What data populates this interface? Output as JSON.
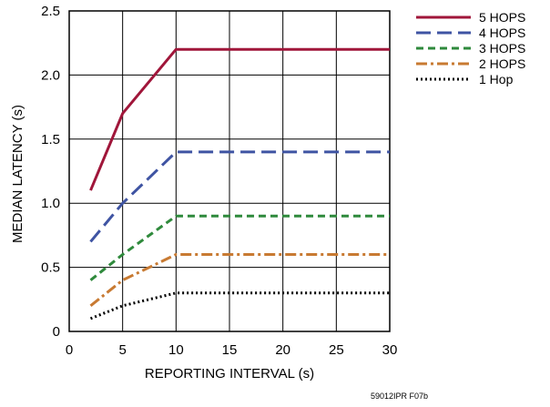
{
  "chart_data": {
    "type": "line",
    "xlabel": "REPORTING INTERVAL (s)",
    "ylabel": "MEDIAN LATENCY (s)",
    "xlim": [
      0,
      30
    ],
    "ylim": [
      0,
      2.5
    ],
    "x_ticks": [
      0,
      5,
      10,
      15,
      20,
      25,
      30
    ],
    "y_ticks": [
      0,
      0.5,
      1.0,
      1.5,
      2.0,
      2.5
    ],
    "x_tick_labels": [
      "0",
      "5",
      "10",
      "15",
      "20",
      "25",
      "30"
    ],
    "y_tick_labels": [
      "0",
      "0.5",
      "1.0",
      "1.5",
      "2.0",
      "2.5"
    ],
    "grid": true,
    "legend_position": "outside-top-right",
    "footnote": "59012IPR F07b",
    "series": [
      {
        "name": "5 HOPS",
        "color": "#a0163a",
        "dash": "solid",
        "x": [
          2,
          5,
          10,
          30
        ],
        "y": [
          1.1,
          1.7,
          2.2,
          2.2
        ]
      },
      {
        "name": "4 HOPS",
        "color": "#3f54a3",
        "dash": "longdash",
        "x": [
          2,
          5,
          10,
          30
        ],
        "y": [
          0.7,
          1.0,
          1.4,
          1.4
        ]
      },
      {
        "name": "3 HOPS",
        "color": "#2f8a3c",
        "dash": "dash",
        "x": [
          2,
          5,
          10,
          30
        ],
        "y": [
          0.4,
          0.6,
          0.9,
          0.9
        ]
      },
      {
        "name": "2 HOPS",
        "color": "#c87a32",
        "dash": "dashdot",
        "x": [
          2,
          5,
          10,
          30
        ],
        "y": [
          0.2,
          0.4,
          0.6,
          0.6
        ]
      },
      {
        "name": "1 Hop",
        "color": "#000000",
        "dash": "dot",
        "x": [
          2,
          5,
          10,
          30
        ],
        "y": [
          0.1,
          0.2,
          0.3,
          0.3
        ]
      }
    ]
  }
}
